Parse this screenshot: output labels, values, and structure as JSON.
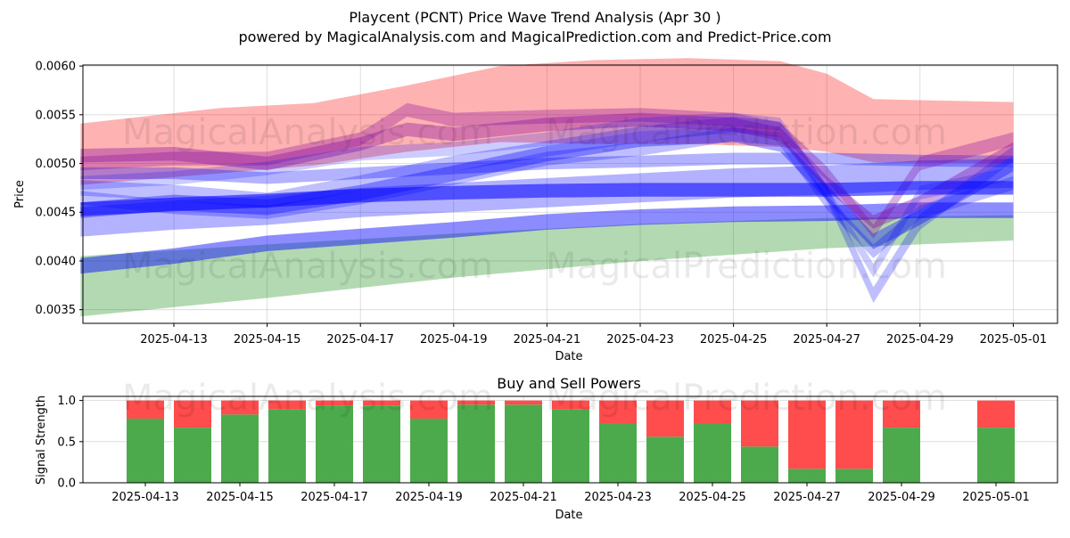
{
  "header": {
    "title": "Playcent (PCNT) Price Wave Trend Analysis (Apr 30 )",
    "subtitle": "powered by MagicalAnalysis.com and MagicalPrediction.com and Predict-Price.com"
  },
  "watermarks": [
    "MagicalAnalysis.com",
    "MagicalPrediction.com"
  ],
  "chart_data": [
    {
      "type": "area",
      "xlabel": "Date",
      "ylabel": "Price",
      "x_ticks": [
        "2025-04-13",
        "2025-04-15",
        "2025-04-17",
        "2025-04-19",
        "2025-04-21",
        "2025-04-23",
        "2025-04-25",
        "2025-04-27",
        "2025-04-29",
        "2025-05-01"
      ],
      "y_ticks": [
        "0.0035",
        "0.0040",
        "0.0045",
        "0.0050",
        "0.0055",
        "0.0060"
      ],
      "ylim": [
        0.00336,
        0.00601
      ],
      "xlim": [
        "2025-04-11",
        "2025-05-02"
      ],
      "grid": true,
      "colors": {
        "red": "#ff0000",
        "green": "#008000",
        "blue": "#0000ff"
      },
      "bands": [
        {
          "color": "red",
          "x": [
            "2025-04-11",
            "2025-04-14",
            "2025-04-16",
            "2025-04-18",
            "2025-04-20",
            "2025-04-22",
            "2025-04-24",
            "2025-04-26",
            "2025-04-27",
            "2025-04-28",
            "2025-05-01"
          ],
          "upper": [
            0.00541,
            0.00557,
            0.00562,
            0.0058,
            0.006,
            0.00606,
            0.00608,
            0.00605,
            0.00592,
            0.00566,
            0.00563
          ],
          "lower": [
            0.00478,
            0.0049,
            0.00498,
            0.00512,
            0.00522,
            0.0052,
            0.0052,
            0.00517,
            0.00512,
            0.00501,
            0.005
          ]
        },
        {
          "color": "green",
          "x": [
            "2025-04-11",
            "2025-04-15",
            "2025-04-19",
            "2025-04-23",
            "2025-04-27",
            "2025-05-01"
          ],
          "upper": [
            0.00405,
            0.00417,
            0.00428,
            0.00438,
            0.00444,
            0.00447
          ],
          "lower": [
            0.00343,
            0.00362,
            0.00383,
            0.004,
            0.00413,
            0.00421
          ]
        }
      ],
      "waves": [
        {
          "color": "blue",
          "alpha": 0.45,
          "width": 0.00016,
          "x": [
            "2025-04-11",
            "2025-04-13",
            "2025-04-15",
            "2025-04-17",
            "2025-04-19",
            "2025-04-21",
            "2025-04-23",
            "2025-04-25",
            "2025-04-27",
            "2025-04-29",
            "2025-05-01"
          ],
          "y": [
            0.00395,
            0.00405,
            0.00418,
            0.00425,
            0.00432,
            0.0044,
            0.00445,
            0.00448,
            0.00449,
            0.00452,
            0.00452
          ]
        },
        {
          "color": "blue",
          "alpha": 0.3,
          "width": 0.0003,
          "x": [
            "2025-04-11",
            "2025-04-13",
            "2025-04-15",
            "2025-04-17",
            "2025-04-19",
            "2025-04-21",
            "2025-04-23",
            "2025-04-25",
            "2025-04-27",
            "2025-04-29",
            "2025-05-01"
          ],
          "y": [
            0.0044,
            0.00447,
            0.00452,
            0.0046,
            0.00465,
            0.0047,
            0.00475,
            0.0048,
            0.00483,
            0.00488,
            0.0049
          ]
        },
        {
          "color": "blue",
          "alpha": 0.3,
          "width": 0.00012,
          "x": [
            "2025-04-11",
            "2025-04-13",
            "2025-04-15",
            "2025-04-17",
            "2025-04-19",
            "2025-04-21",
            "2025-04-23",
            "2025-04-25",
            "2025-04-27",
            "2025-04-29",
            "2025-05-01"
          ],
          "y": [
            0.0049,
            0.0049,
            0.00485,
            0.0049,
            0.00495,
            0.005,
            0.00502,
            0.00505,
            0.00505,
            0.00503,
            0.00502
          ]
        },
        {
          "color": "blue",
          "alpha": 0.35,
          "width": 0.00016,
          "x": [
            "2025-04-11",
            "2025-04-13",
            "2025-04-15",
            "2025-04-17",
            "2025-04-19",
            "2025-04-21",
            "2025-04-23",
            "2025-04-25",
            "2025-04-26",
            "2025-04-27",
            "2025-04-28",
            "2025-04-29",
            "2025-05-01"
          ],
          "y": [
            0.00452,
            0.0046,
            0.00455,
            0.0047,
            0.0049,
            0.0051,
            0.00525,
            0.0053,
            0.0052,
            0.0047,
            0.0042,
            0.00445,
            0.005
          ]
        },
        {
          "color": "blue",
          "alpha": 0.25,
          "width": 0.00016,
          "x": [
            "2025-04-11",
            "2025-04-13",
            "2025-04-15",
            "2025-04-17",
            "2025-04-19",
            "2025-04-21",
            "2025-04-23",
            "2025-04-25",
            "2025-04-26",
            "2025-04-27",
            "2025-04-28",
            "2025-04-29",
            "2025-05-01"
          ],
          "y": [
            0.00475,
            0.0047,
            0.00462,
            0.0048,
            0.005,
            0.00515,
            0.0053,
            0.0054,
            0.00535,
            0.0047,
            0.00365,
            0.0044,
            0.0051
          ]
        },
        {
          "color": "blue",
          "alpha": 0.25,
          "width": 0.00014,
          "x": [
            "2025-04-11",
            "2025-04-13",
            "2025-04-15",
            "2025-04-17",
            "2025-04-19",
            "2025-04-21",
            "2025-04-23",
            "2025-04-25",
            "2025-04-26",
            "2025-04-27",
            "2025-04-28",
            "2025-04-29",
            "2025-05-01"
          ],
          "y": [
            0.00465,
            0.00455,
            0.0045,
            0.00465,
            0.00485,
            0.00505,
            0.00515,
            0.0053,
            0.00525,
            0.0046,
            0.0041,
            0.0045,
            0.0048
          ]
        },
        {
          "color": "purple",
          "alpha": 0.35,
          "width": 0.00014,
          "x": [
            "2025-04-11",
            "2025-04-13",
            "2025-04-15",
            "2025-04-17",
            "2025-04-18",
            "2025-04-19",
            "2025-04-21",
            "2025-04-23",
            "2025-04-25",
            "2025-04-26",
            "2025-04-27",
            "2025-04-28",
            "2025-04-29",
            "2025-05-01"
          ],
          "y": [
            0.00508,
            0.0051,
            0.005,
            0.0052,
            0.00535,
            0.0053,
            0.0054,
            0.00545,
            0.0054,
            0.0053,
            0.0048,
            0.0044,
            0.0046,
            0.00515
          ]
        },
        {
          "color": "purple",
          "alpha": 0.3,
          "width": 0.00014,
          "x": [
            "2025-04-11",
            "2025-04-13",
            "2025-04-15",
            "2025-04-17",
            "2025-04-18",
            "2025-04-19",
            "2025-04-21",
            "2025-04-23",
            "2025-04-25",
            "2025-04-26",
            "2025-04-27",
            "2025-04-28",
            "2025-04-29",
            "2025-05-01"
          ],
          "y": [
            0.005,
            0.00505,
            0.00505,
            0.00525,
            0.00555,
            0.00545,
            0.00548,
            0.0055,
            0.00545,
            0.00535,
            0.0049,
            0.0043,
            0.005,
            0.00525
          ]
        },
        {
          "color": "blue",
          "alpha": 0.2,
          "width": 0.00014,
          "x": [
            "2025-04-11",
            "2025-04-13",
            "2025-04-15",
            "2025-04-17",
            "2025-04-19",
            "2025-04-21",
            "2025-04-23",
            "2025-04-25",
            "2025-04-26",
            "2025-04-27",
            "2025-04-28",
            "2025-04-29",
            "2025-05-01"
          ],
          "y": [
            0.0048,
            0.00485,
            0.00495,
            0.0051,
            0.00515,
            0.00525,
            0.0054,
            0.00545,
            0.0054,
            0.0047,
            0.0039,
            0.0047,
            0.0049
          ]
        },
        {
          "color": "blue",
          "alpha": 0.55,
          "width": 0.00014,
          "x": [
            "2025-04-11",
            "2025-04-13",
            "2025-04-15",
            "2025-04-17",
            "2025-04-19",
            "2025-04-21",
            "2025-04-23",
            "2025-04-25",
            "2025-04-27",
            "2025-04-29",
            "2025-05-01"
          ],
          "y": [
            0.00453,
            0.00458,
            0.00462,
            0.00467,
            0.0047,
            0.00472,
            0.00473,
            0.00473,
            0.00473,
            0.00475,
            0.00475
          ]
        }
      ]
    },
    {
      "type": "bar",
      "title": "Buy and Sell Powers",
      "xlabel": "Date",
      "ylabel": "Signal Strength",
      "x_ticks": [
        "2025-04-13",
        "2025-04-15",
        "2025-04-17",
        "2025-04-19",
        "2025-04-21",
        "2025-04-23",
        "2025-04-25",
        "2025-04-27",
        "2025-04-29",
        "2025-05-01"
      ],
      "y_ticks": [
        "0.0",
        "0.5",
        "1.0"
      ],
      "ylim": [
        0,
        1.05
      ],
      "grid": true,
      "categories": [
        "2025-04-13",
        "2025-04-14",
        "2025-04-15",
        "2025-04-16",
        "2025-04-17",
        "2025-04-18",
        "2025-04-19",
        "2025-04-20",
        "2025-04-21",
        "2025-04-22",
        "2025-04-23",
        "2025-04-24",
        "2025-04-25",
        "2025-04-26",
        "2025-04-27",
        "2025-04-28",
        "2025-04-29",
        "2025-05-01"
      ],
      "series": [
        {
          "color": "#4caa4c",
          "values": [
            0.78,
            0.67,
            0.83,
            0.89,
            0.94,
            0.94,
            0.78,
            0.95,
            0.95,
            0.89,
            0.72,
            0.56,
            0.72,
            0.44,
            0.17,
            0.17,
            0.67,
            0.67
          ]
        },
        {
          "color": "#ff4c4c",
          "values": [
            0.22,
            0.33,
            0.17,
            0.11,
            0.06,
            0.06,
            0.22,
            0.05,
            0.05,
            0.11,
            0.28,
            0.44,
            0.28,
            0.56,
            0.83,
            0.83,
            0.33,
            0.33
          ]
        }
      ]
    }
  ]
}
